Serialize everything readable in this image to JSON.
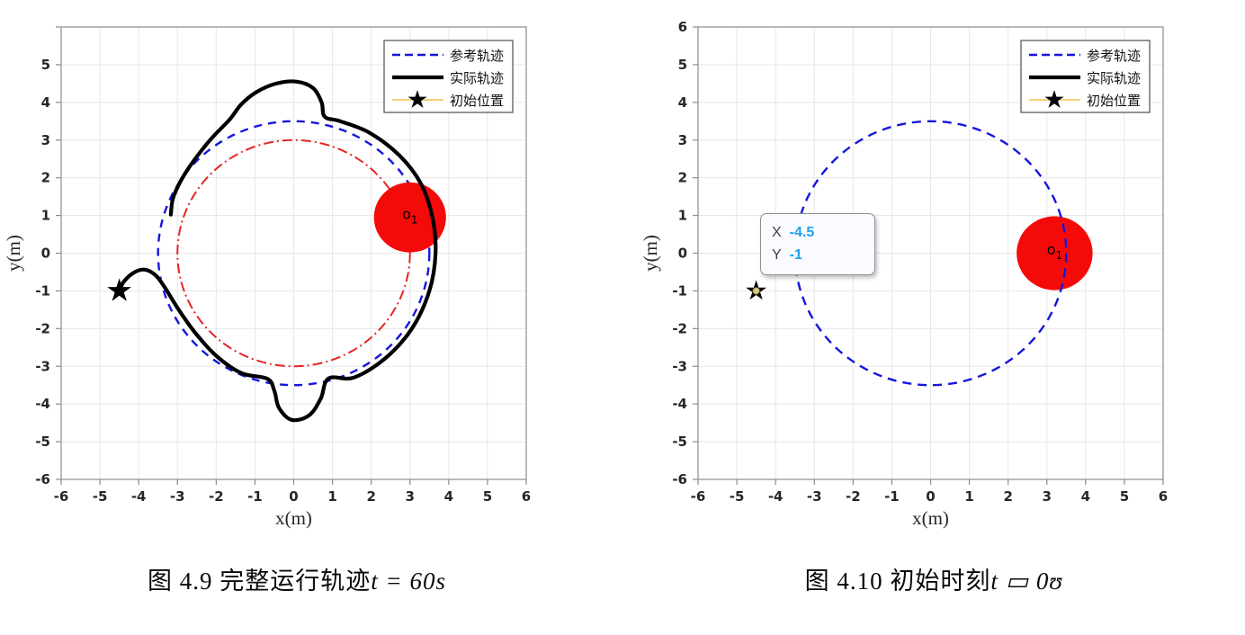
{
  "figure": {
    "panels": [
      {
        "name": "complete-run-trajectory",
        "caption": {
          "prefix": "图  4.9  完整运行轨迹",
          "formula": "t = 60s"
        }
      },
      {
        "name": "initial-instant-trajectory",
        "caption": {
          "prefix": "图  4.10  初始时刻",
          "formula": "t ▭ 0ʊ"
        },
        "datatip": {
          "row1_label": "X",
          "row1_value": "-4.5",
          "row2_label": "Y",
          "row2_value": "-1"
        }
      }
    ]
  },
  "chart_data": [
    {
      "type": "line",
      "title": "",
      "xlabel": "x(m)",
      "ylabel": "y(m)",
      "xlim": [
        -6,
        6
      ],
      "ylim": [
        -6,
        6
      ],
      "grid": true,
      "legend_position": "top-right",
      "xticks": [
        -6,
        -5,
        -4,
        -3,
        -2,
        -1,
        0,
        1,
        2,
        3,
        4,
        5,
        6
      ],
      "xtick_labels": [
        "-6",
        "-5",
        "-4",
        "-3",
        "-2",
        "-1",
        "0",
        "1",
        "2",
        "3",
        "4",
        "5",
        "6"
      ],
      "yticks": [
        6,
        5,
        4,
        3,
        2,
        1,
        0,
        -1,
        -2,
        -3,
        -4,
        -5,
        -6
      ],
      "ytick_labels": [
        "",
        "5",
        "4",
        "3",
        "2",
        "1",
        "0",
        "-1",
        "-2",
        "-3",
        "-4",
        "-5",
        "-6"
      ],
      "legend": {
        "items": [
          {
            "label": "参考轨迹",
            "sample": "dashed-blue"
          },
          {
            "label": "实际轨迹",
            "sample": "solid-black"
          },
          {
            "label": "初始位置",
            "sample": "star-on-orange"
          }
        ]
      },
      "colors": {
        "reference": "#1616dc",
        "inner_circle": "#e62424",
        "obstacle": "#f50a0a",
        "actual": "#000000",
        "legend_orange": "#efb428"
      },
      "elements": [
        {
          "kind": "circle",
          "name": "reference-trajectory-circle",
          "center": [
            0,
            0
          ],
          "radius": 3.5,
          "color": "#1616dc",
          "dash": "9 7",
          "width": 2.4
        },
        {
          "kind": "circle",
          "name": "inner-dashdot-circle",
          "center": [
            0,
            0
          ],
          "radius": 3.0,
          "color": "#e62424",
          "dash": "11 4 2 4",
          "width": 2
        },
        {
          "kind": "disk",
          "name": "obstacle-o1-disk",
          "center": [
            3.0,
            0.95
          ],
          "radius": 0.93,
          "color": "#f50a0a"
        },
        {
          "kind": "point-label",
          "name": "obstacle-o1-label",
          "text": "o",
          "sub": "1",
          "at": [
            2.8,
            1.02
          ]
        },
        {
          "kind": "path",
          "name": "actual-trajectory-path",
          "color": "#000000",
          "width": 4.2,
          "points": [
            [
              -4.5,
              -1.0
            ],
            [
              -4.38,
              -0.75
            ],
            [
              -4.1,
              -0.5
            ],
            [
              -3.82,
              -0.44
            ],
            [
              -3.55,
              -0.6
            ],
            [
              -3.3,
              -0.95
            ],
            [
              -3.0,
              -1.45
            ],
            [
              -2.55,
              -2.1
            ],
            [
              -2.0,
              -2.72
            ],
            [
              -1.35,
              -3.18
            ],
            [
              -0.68,
              -3.33
            ],
            [
              -0.5,
              -3.65
            ],
            [
              -0.38,
              -4.1
            ],
            [
              -0.05,
              -4.42
            ],
            [
              0.4,
              -4.3
            ],
            [
              0.7,
              -3.85
            ],
            [
              0.9,
              -3.32
            ],
            [
              1.55,
              -3.3
            ],
            [
              2.35,
              -2.8
            ],
            [
              3.05,
              -2.0
            ],
            [
              3.5,
              -1.0
            ],
            [
              3.66,
              0.0
            ],
            [
              3.58,
              0.95
            ],
            [
              3.28,
              1.85
            ],
            [
              2.72,
              2.6
            ],
            [
              1.95,
              3.2
            ],
            [
              1.2,
              3.5
            ],
            [
              0.8,
              3.62
            ],
            [
              0.72,
              4.0
            ],
            [
              0.5,
              4.38
            ],
            [
              0.08,
              4.55
            ],
            [
              -0.45,
              4.5
            ],
            [
              -0.95,
              4.28
            ],
            [
              -1.35,
              3.95
            ],
            [
              -1.65,
              3.55
            ],
            [
              -2.2,
              2.95
            ],
            [
              -2.78,
              2.15
            ],
            [
              -3.1,
              1.5
            ],
            [
              -3.17,
              1.02
            ]
          ]
        },
        {
          "kind": "star",
          "name": "initial-position-star",
          "at": [
            -4.5,
            -1
          ],
          "size": 14,
          "color": "#000000",
          "dot": false
        }
      ]
    },
    {
      "type": "line",
      "title": "",
      "xlabel": "x(m)",
      "ylabel": "y(m)",
      "xlim": [
        -6,
        6
      ],
      "ylim": [
        -6,
        6
      ],
      "grid": true,
      "legend_position": "top-right",
      "xticks": [
        -6,
        -5,
        -4,
        -3,
        -2,
        -1,
        0,
        1,
        2,
        3,
        4,
        5,
        6
      ],
      "xtick_labels": [
        "-6",
        "-5",
        "-4",
        "-3",
        "-2",
        "-1",
        "0",
        "1",
        "2",
        "3",
        "4",
        "5",
        "6"
      ],
      "yticks": [
        6,
        5,
        4,
        3,
        2,
        1,
        0,
        -1,
        -2,
        -3,
        -4,
        -5,
        -6
      ],
      "ytick_labels": [
        "6",
        "5",
        "4",
        "3",
        "2",
        "1",
        "0",
        "-1",
        "-2",
        "-3",
        "-4",
        "-5",
        "-6"
      ],
      "legend": {
        "items": [
          {
            "label": "参考轨迹",
            "sample": "dashed-blue"
          },
          {
            "label": "实际轨迹",
            "sample": "solid-black"
          },
          {
            "label": "初始位置",
            "sample": "star-on-orange"
          }
        ]
      },
      "colors": {
        "reference": "#1616dc",
        "obstacle": "#f50a0a",
        "actual": "#000000",
        "legend_orange": "#efb428",
        "datatip_value": "#1ba1f2"
      },
      "datatip": {
        "anchor": [
          -4.5,
          -1
        ],
        "labels": [
          "X",
          "Y"
        ],
        "values": [
          "-4.5",
          "-1"
        ]
      },
      "elements": [
        {
          "kind": "disk",
          "name": "obstacle-o1-disk",
          "center": [
            3.2,
            0.0
          ],
          "radius": 0.98,
          "color": "#f50a0a"
        },
        {
          "kind": "point-label",
          "name": "obstacle-o1-label",
          "text": "o",
          "sub": "1",
          "at": [
            3.0,
            0.08
          ]
        },
        {
          "kind": "circle",
          "name": "reference-trajectory-circle",
          "center": [
            0,
            0
          ],
          "radius": 3.5,
          "color": "#1616dc",
          "dash": "10 7",
          "width": 2.4
        },
        {
          "kind": "star",
          "name": "initial-position-star",
          "at": [
            -4.5,
            -1
          ],
          "size": 12,
          "color": "#000000",
          "dot": true
        }
      ]
    }
  ]
}
